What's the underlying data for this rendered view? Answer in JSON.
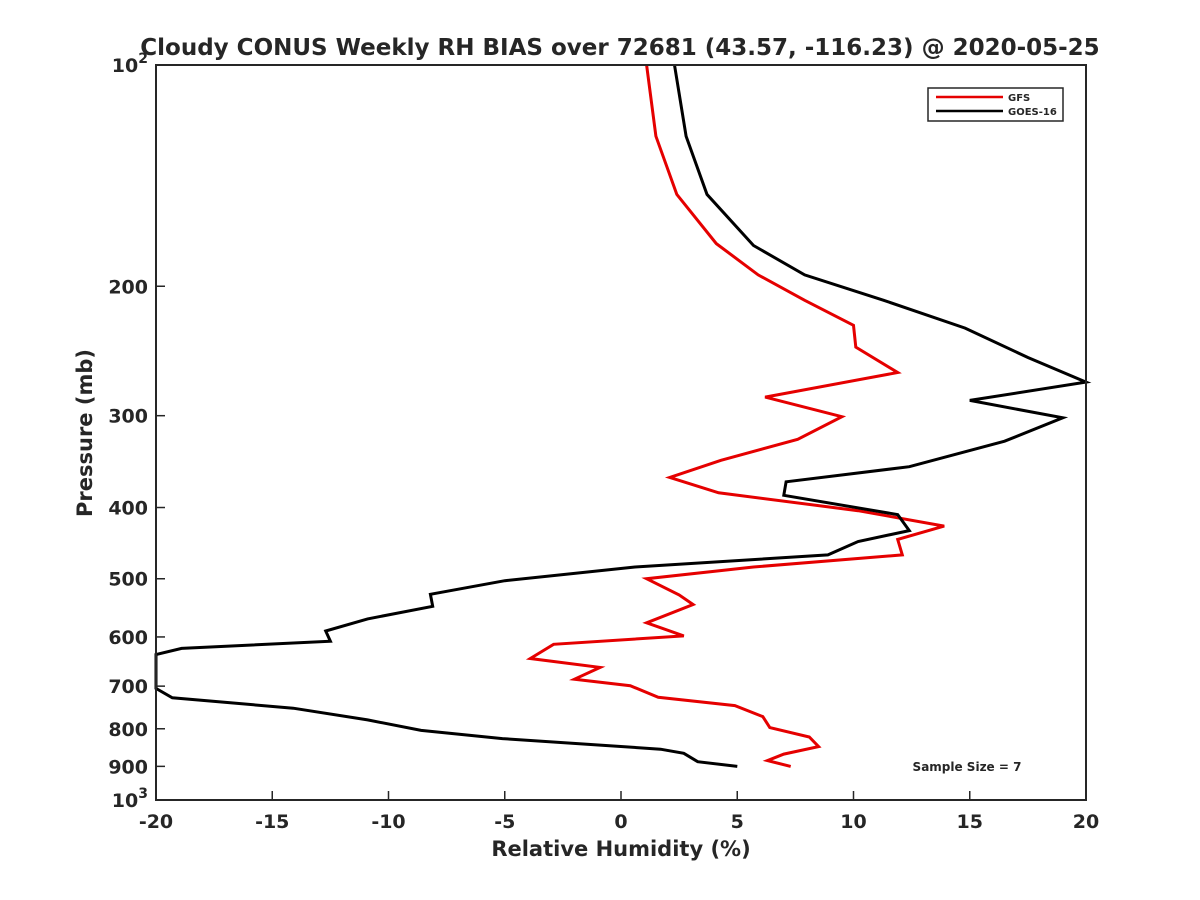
{
  "chart_data": {
    "type": "line",
    "title": "Cloudy CONUS Weekly RH BIAS over 72681 (43.57, -116.23) @ 2020-05-25",
    "xlabel": "Relative Humidity (%)",
    "ylabel": "Pressure (mb)",
    "xlim": [
      -20,
      20
    ],
    "ylim": [
      100,
      1000
    ],
    "y_scale": "log",
    "y_reversed": true,
    "grid": false,
    "legend_position": "top-right",
    "x_ticks": [
      {
        "value": -20,
        "label": "-20"
      },
      {
        "value": -15,
        "label": "-15"
      },
      {
        "value": -10,
        "label": "-10"
      },
      {
        "value": -5,
        "label": "-5"
      },
      {
        "value": 0,
        "label": "0"
      },
      {
        "value": 5,
        "label": "5"
      },
      {
        "value": 10,
        "label": "10"
      },
      {
        "value": 15,
        "label": "15"
      },
      {
        "value": 20,
        "label": "20"
      }
    ],
    "y_ticks": [
      {
        "value": 100,
        "base": "10",
        "exp": "2"
      },
      {
        "value": 200,
        "label": "200"
      },
      {
        "value": 300,
        "label": "300"
      },
      {
        "value": 400,
        "label": "400"
      },
      {
        "value": 500,
        "label": "500"
      },
      {
        "value": 600,
        "label": "600"
      },
      {
        "value": 700,
        "label": "700"
      },
      {
        "value": 800,
        "label": "800"
      },
      {
        "value": 900,
        "label": "900"
      },
      {
        "value": 1000,
        "base": "10",
        "exp": "3"
      }
    ],
    "series": [
      {
        "name": "GFS",
        "color": "#e50000",
        "points": [
          [
            1.1,
            100
          ],
          [
            1.5,
            125
          ],
          [
            2.4,
            150
          ],
          [
            4.1,
            175
          ],
          [
            5.9,
            193
          ],
          [
            7.9,
            209
          ],
          [
            10.0,
            226
          ],
          [
            10.1,
            242
          ],
          [
            11.9,
            262
          ],
          [
            6.2,
            283
          ],
          [
            9.5,
            301
          ],
          [
            7.6,
            323
          ],
          [
            4.3,
            345
          ],
          [
            2.1,
            364
          ],
          [
            4.2,
            382
          ],
          [
            10.2,
            404
          ],
          [
            13.9,
            424
          ],
          [
            11.9,
            442
          ],
          [
            12.1,
            464
          ],
          [
            5.7,
            482
          ],
          [
            1.1,
            500
          ],
          [
            2.5,
            526
          ],
          [
            3.1,
            542
          ],
          [
            1.1,
            574
          ],
          [
            2.7,
            598
          ],
          [
            -2.9,
            614
          ],
          [
            -3.9,
            642
          ],
          [
            -0.9,
            660
          ],
          [
            -2.0,
            685
          ],
          [
            0.4,
            699
          ],
          [
            1.6,
            725
          ],
          [
            4.9,
            744
          ],
          [
            6.1,
            770
          ],
          [
            6.4,
            797
          ],
          [
            8.1,
            821
          ],
          [
            8.5,
            846
          ],
          [
            7.0,
            866
          ],
          [
            6.3,
            884
          ],
          [
            7.3,
            900
          ]
        ]
      },
      {
        "name": "GOES-16",
        "color": "#000000",
        "points": [
          [
            2.3,
            100
          ],
          [
            2.8,
            125
          ],
          [
            3.7,
            150
          ],
          [
            5.7,
            176
          ],
          [
            7.9,
            193
          ],
          [
            11.3,
            209
          ],
          [
            14.8,
            228
          ],
          [
            17.5,
            250
          ],
          [
            20.0,
            270
          ],
          [
            15.0,
            286
          ],
          [
            19.0,
            302
          ],
          [
            16.5,
            325
          ],
          [
            12.4,
            352
          ],
          [
            7.1,
            369
          ],
          [
            7.0,
            385
          ],
          [
            11.9,
            409
          ],
          [
            12.4,
            430
          ],
          [
            10.2,
            445
          ],
          [
            8.9,
            464
          ],
          [
            0.6,
            482
          ],
          [
            -5.0,
            503
          ],
          [
            -8.2,
            525
          ],
          [
            -8.1,
            545
          ],
          [
            -10.9,
            567
          ],
          [
            -12.7,
            589
          ],
          [
            -12.5,
            608
          ],
          [
            -18.9,
            622
          ],
          [
            -20.0,
            634
          ],
          [
            -20.0,
            705
          ],
          [
            -19.3,
            726
          ],
          [
            -14.1,
            750
          ],
          [
            -10.9,
            778
          ],
          [
            -8.6,
            804
          ],
          [
            -5.1,
            825
          ],
          [
            -0.9,
            842
          ],
          [
            1.7,
            853
          ],
          [
            2.7,
            864
          ],
          [
            3.3,
            887
          ],
          [
            5.0,
            900
          ]
        ]
      }
    ],
    "annotation": "Sample Size = 7"
  }
}
